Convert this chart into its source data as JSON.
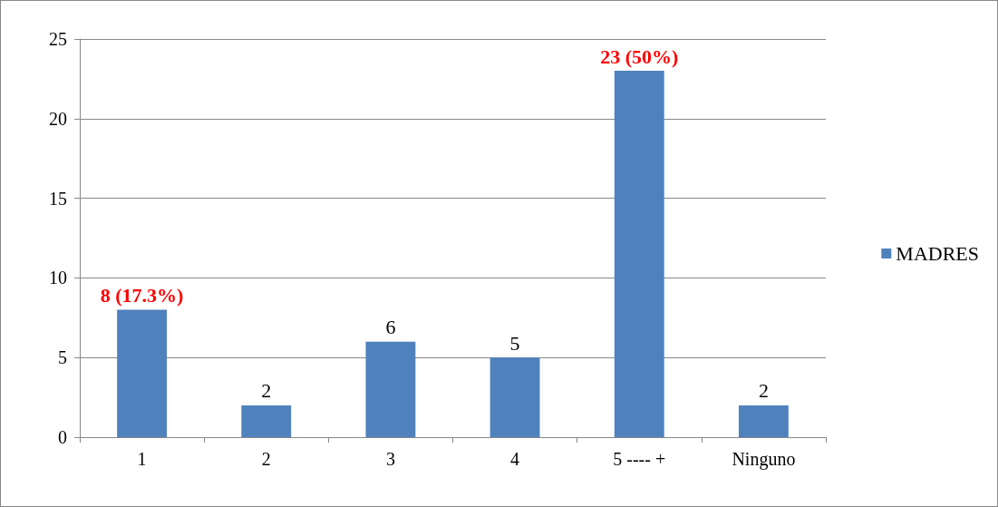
{
  "chart_data": {
    "type": "bar",
    "categories": [
      "1",
      "2",
      "3",
      "4",
      "5 ---- +",
      "Ninguno"
    ],
    "series": [
      {
        "name": "MADRES",
        "color": "#4f81bd",
        "values": [
          8,
          2,
          6,
          5,
          23,
          2
        ],
        "value_labels": [
          "8 (17.3%)",
          "2",
          "6",
          "5",
          "23 (50%)",
          "2"
        ]
      }
    ],
    "ylim": [
      0,
      25
    ],
    "yticks": [
      0,
      5,
      10,
      15,
      20,
      25
    ],
    "grid": "y",
    "legend": "right"
  }
}
